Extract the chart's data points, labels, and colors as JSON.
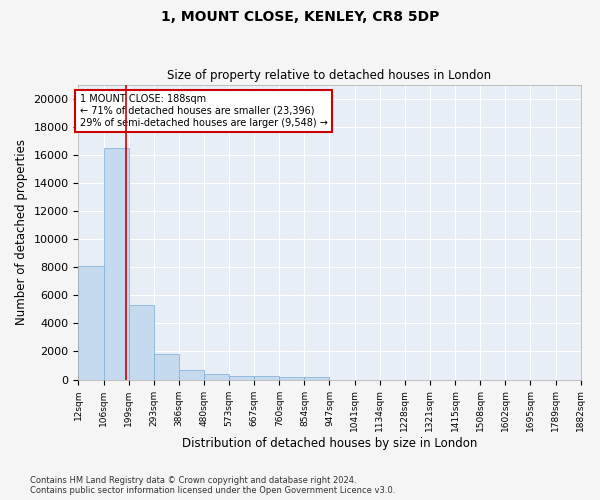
{
  "title": "1, MOUNT CLOSE, KENLEY, CR8 5DP",
  "subtitle": "Size of property relative to detached houses in London",
  "xlabel": "Distribution of detached houses by size in London",
  "ylabel": "Number of detached properties",
  "bar_color": "#c5d9ef",
  "bar_edge_color": "#7badd4",
  "vline_color": "#cc0000",
  "vline_x": 188,
  "annotation_text": "1 MOUNT CLOSE: 188sqm\n← 71% of detached houses are smaller (23,396)\n29% of semi-detached houses are larger (9,548) →",
  "annotation_box_color": "#cc0000",
  "footnote": "Contains HM Land Registry data © Crown copyright and database right 2024.\nContains public sector information licensed under the Open Government Licence v3.0.",
  "bin_edges": [
    12,
    106,
    199,
    293,
    386,
    480,
    573,
    667,
    760,
    854,
    947,
    1041,
    1134,
    1228,
    1321,
    1415,
    1508,
    1602,
    1695,
    1789,
    1882
  ],
  "bar_heights": [
    8100,
    16500,
    5300,
    1850,
    700,
    380,
    290,
    230,
    200,
    170,
    0,
    0,
    0,
    0,
    0,
    0,
    0,
    0,
    0,
    0
  ],
  "ylim": [
    0,
    21000
  ],
  "yticks": [
    0,
    2000,
    4000,
    6000,
    8000,
    10000,
    12000,
    14000,
    16000,
    18000,
    20000
  ],
  "background_color": "#e8eef6",
  "grid_color": "#ffffff",
  "fig_facecolor": "#f5f5f5"
}
